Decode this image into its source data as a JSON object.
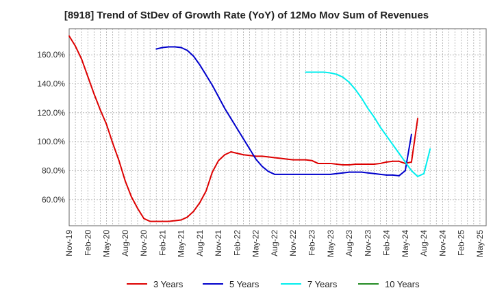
{
  "chart_data": {
    "type": "line",
    "title": "[8918]  Trend of StDev of Growth Rate (YoY) of 12Mo Mov Sum of Revenues",
    "xlabel": "",
    "ylabel": "",
    "ylim": [
      42,
      178
    ],
    "yticks": [
      60,
      80,
      100,
      120,
      140,
      160
    ],
    "ytick_labels": [
      "60.0%",
      "80.0%",
      "100.0%",
      "120.0%",
      "140.0%",
      "160.0%"
    ],
    "x_start": "Nov-19",
    "x_months": 67,
    "xtick_labels": [
      "Nov-19",
      "Feb-20",
      "May-20",
      "Aug-20",
      "Nov-20",
      "Feb-21",
      "May-21",
      "Aug-21",
      "Nov-21",
      "Feb-22",
      "May-22",
      "Aug-22",
      "Nov-22",
      "Feb-23",
      "May-23",
      "Aug-23",
      "Nov-23",
      "Feb-24",
      "May-24",
      "Aug-24",
      "Nov-24",
      "Feb-25",
      "May-25"
    ],
    "grid": true,
    "legend_position": "bottom",
    "series": [
      {
        "name": "3 Years",
        "color": "#dd0000",
        "start_index": 0,
        "values": [
          173,
          166,
          157,
          145,
          133,
          122,
          112,
          99,
          87,
          73,
          62,
          54,
          47,
          45,
          45,
          45,
          45,
          45.5,
          46,
          48,
          52,
          58,
          66,
          79,
          87,
          91,
          93,
          92,
          91,
          90.5,
          90,
          90,
          89.5,
          89,
          88.5,
          88,
          87.5,
          87.5,
          87.5,
          87,
          85,
          85,
          85,
          84.5,
          84,
          84,
          84.5,
          84.5,
          84.5,
          84.5,
          85,
          86,
          86.5,
          86.5,
          85,
          86,
          116
        ]
      },
      {
        "name": "5 Years",
        "color": "#0000cc",
        "start_index": 14,
        "values": [
          164,
          165,
          165.5,
          165.5,
          165,
          163,
          159,
          153,
          146,
          139,
          131,
          123,
          116,
          109,
          102,
          95,
          88,
          83,
          79.5,
          77.5,
          77.5,
          77.5,
          77.5,
          77.5,
          77.5,
          77.5,
          77.5,
          77.5,
          77.5,
          78,
          78.5,
          79,
          79,
          79,
          78.5,
          78,
          77.5,
          77,
          77,
          76.5,
          80,
          105
        ]
      },
      {
        "name": "7 Years",
        "color": "#00eeee",
        "start_index": 38,
        "values": [
          148,
          148,
          148,
          148,
          147.5,
          146.5,
          144.5,
          141,
          136,
          130,
          123,
          117,
          110,
          104,
          98,
          92,
          86,
          80,
          76,
          78,
          95
        ]
      },
      {
        "name": "10 Years",
        "color": "#228B22",
        "start_index": 0,
        "values": []
      }
    ]
  }
}
